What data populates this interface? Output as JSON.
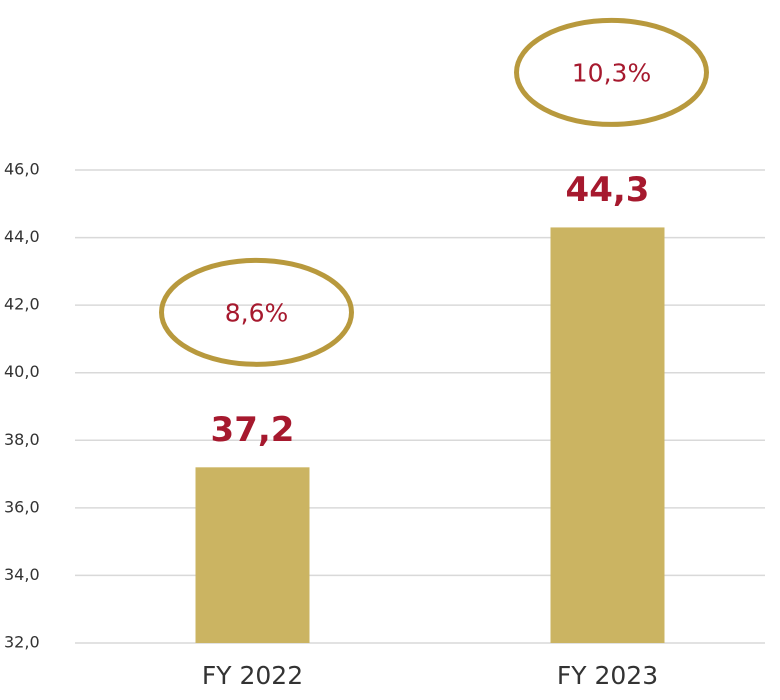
{
  "chart_data": {
    "type": "bar",
    "categories": [
      "FY 2022",
      "FY 2023"
    ],
    "values": [
      37.2,
      44.3
    ],
    "value_labels": [
      "37,2",
      "44,3"
    ],
    "annotations": [
      "8,6%",
      "10,3%"
    ],
    "color": "#cbb462",
    "annotation_color": "#b8993d",
    "label_color": "#a6192e",
    "ylim": [
      32,
      46
    ],
    "yticks": [
      {
        "value": 32,
        "label": "32,0"
      },
      {
        "value": 34,
        "label": "34,0"
      },
      {
        "value": 36,
        "label": "36,0"
      },
      {
        "value": 38,
        "label": "38,0"
      },
      {
        "value": 40,
        "label": "40,0"
      },
      {
        "value": 42,
        "label": "42,0"
      },
      {
        "value": 44,
        "label": "44,0"
      },
      {
        "value": 46,
        "label": "46,0"
      }
    ],
    "grid": true
  }
}
